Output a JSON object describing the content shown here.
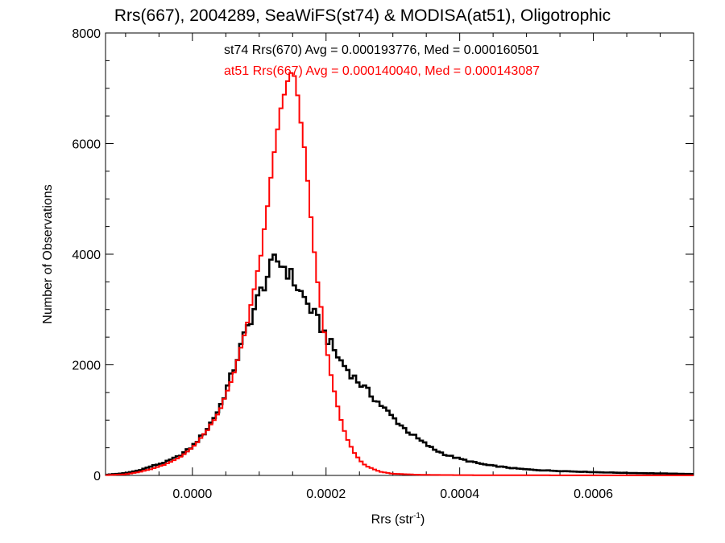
{
  "chart_data": {
    "type": "histogram",
    "title": "Rrs(667), 2004289, SeaWiFS(st74) & MODISA(at51), Oligotrophic",
    "xlabel": {
      "text": "Rrs (str",
      "superscript": "-1",
      "suffix": ")"
    },
    "ylabel": "Number of Observations",
    "xlim": [
      -0.00013,
      0.00075
    ],
    "ylim": [
      0,
      8000
    ],
    "x_ticks": [
      0.0,
      0.0002,
      0.0004,
      0.0006
    ],
    "x_tick_labels": [
      "0.0000",
      "0.0002",
      "0.0004",
      "0.0006"
    ],
    "y_ticks": [
      0,
      2000,
      4000,
      6000,
      8000
    ],
    "y_tick_labels": [
      "0",
      "2000",
      "4000",
      "6000",
      "8000"
    ],
    "legend": [
      {
        "text": "st74 Rrs(670) Avg = 0.000193776, Med = 0.000160501",
        "color": "#000000"
      },
      {
        "text": "at51 Rrs(667) Avg = 0.000140040, Med = 0.000143087",
        "color": "#ff0000"
      }
    ],
    "series": [
      {
        "color": "#000000",
        "points": [
          [
            -0.00013,
            10
          ],
          [
            -0.0001,
            40
          ],
          [
            -8e-05,
            90
          ],
          [
            -6e-05,
            170
          ],
          [
            -4e-05,
            240
          ],
          [
            -2e-05,
            350
          ],
          [
            0.0,
            520
          ],
          [
            2e-05,
            800
          ],
          [
            4e-05,
            1200
          ],
          [
            6e-05,
            1850
          ],
          [
            8e-05,
            2600
          ],
          [
            0.0001,
            3250
          ],
          [
            0.00011,
            3550
          ],
          [
            0.00012,
            3800
          ],
          [
            0.000125,
            3900
          ],
          [
            0.00013,
            3850
          ],
          [
            0.00014,
            3750
          ],
          [
            0.00015,
            3550
          ],
          [
            0.00016,
            3350
          ],
          [
            0.00018,
            2950
          ],
          [
            0.0002,
            2520
          ],
          [
            0.00022,
            2100
          ],
          [
            0.00024,
            1800
          ],
          [
            0.00026,
            1550
          ],
          [
            0.00028,
            1300
          ],
          [
            0.0003,
            1050
          ],
          [
            0.00032,
            820
          ],
          [
            0.00034,
            640
          ],
          [
            0.00036,
            480
          ],
          [
            0.00038,
            370
          ],
          [
            0.0004,
            300
          ],
          [
            0.00042,
            240
          ],
          [
            0.00044,
            190
          ],
          [
            0.00046,
            160
          ],
          [
            0.00048,
            130
          ],
          [
            0.0005,
            110
          ],
          [
            0.00052,
            95
          ],
          [
            0.00055,
            80
          ],
          [
            0.0006,
            60
          ],
          [
            0.00065,
            45
          ],
          [
            0.0007,
            35
          ],
          [
            0.00075,
            25
          ]
        ]
      },
      {
        "color": "#ff0000",
        "points": [
          [
            -0.00013,
            5
          ],
          [
            -0.0001,
            20
          ],
          [
            -8e-05,
            60
          ],
          [
            -6e-05,
            120
          ],
          [
            -4e-05,
            200
          ],
          [
            -2e-05,
            320
          ],
          [
            0.0,
            500
          ],
          [
            2e-05,
            780
          ],
          [
            4e-05,
            1150
          ],
          [
            6e-05,
            1750
          ],
          [
            8e-05,
            2650
          ],
          [
            0.0001,
            3800
          ],
          [
            0.00011,
            4600
          ],
          [
            0.00012,
            5600
          ],
          [
            0.00013,
            6500
          ],
          [
            0.00014,
            7100
          ],
          [
            0.00015,
            7300
          ],
          [
            0.00016,
            6700
          ],
          [
            0.00017,
            5600
          ],
          [
            0.00018,
            4300
          ],
          [
            0.00019,
            3250
          ],
          [
            0.0002,
            2350
          ],
          [
            0.00021,
            1650
          ],
          [
            0.00022,
            1100
          ],
          [
            0.00023,
            700
          ],
          [
            0.00024,
            450
          ],
          [
            0.00025,
            280
          ],
          [
            0.00026,
            170
          ],
          [
            0.00028,
            70
          ],
          [
            0.0003,
            30
          ],
          [
            0.00034,
            12
          ],
          [
            0.0004,
            5
          ],
          [
            0.0005,
            3
          ],
          [
            0.00075,
            1
          ]
        ]
      }
    ]
  }
}
